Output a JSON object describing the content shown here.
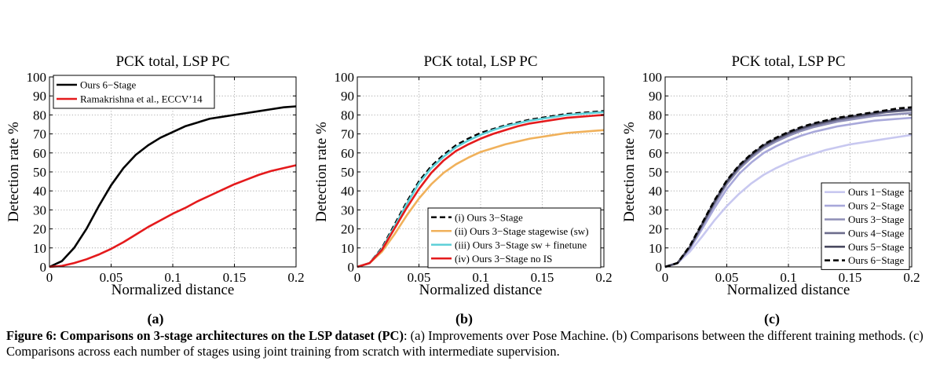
{
  "chart_data": [
    {
      "type": "line",
      "title": "PCK total, LSP PC",
      "xlabel": "Normalized distance",
      "ylabel": "Detection rate %",
      "xlim": [
        0,
        0.2
      ],
      "ylim": [
        0,
        100
      ],
      "xticks": [
        "0",
        "0.05",
        "0.1",
        "0.15",
        "0.2"
      ],
      "yticks": [
        "0",
        "10",
        "20",
        "30",
        "40",
        "50",
        "60",
        "70",
        "80",
        "90",
        "100"
      ],
      "grid": true,
      "legend_position": "top-left",
      "x": [
        0,
        0.01,
        0.02,
        0.03,
        0.04,
        0.05,
        0.06,
        0.07,
        0.08,
        0.09,
        0.1,
        0.11,
        0.12,
        0.13,
        0.14,
        0.15,
        0.16,
        0.17,
        0.18,
        0.19,
        0.2
      ],
      "series": [
        {
          "name": "Ours 6−Stage",
          "color": "#000000",
          "dash": "solid",
          "values": [
            0,
            3,
            10,
            20,
            32,
            43,
            52,
            59,
            64,
            68,
            71,
            74,
            76,
            78,
            79,
            80,
            81,
            82,
            83,
            84,
            84.5
          ]
        },
        {
          "name": "Ramakrishna et al., ECCV’14",
          "color": "#e41a1c",
          "dash": "solid",
          "values": [
            0,
            0.5,
            2,
            4,
            6.5,
            9.5,
            13,
            17,
            21,
            24.5,
            28,
            31,
            34.5,
            37.5,
            40.5,
            43.5,
            46,
            48.5,
            50.5,
            52,
            53.5
          ]
        }
      ]
    },
    {
      "type": "line",
      "title": "PCK total, LSP PC",
      "xlabel": "Normalized distance",
      "ylabel": "Detection rate %",
      "xlim": [
        0,
        0.2
      ],
      "ylim": [
        0,
        100
      ],
      "xticks": [
        "0",
        "0.05",
        "0.1",
        "0.15",
        "0.2"
      ],
      "yticks": [
        "0",
        "10",
        "20",
        "30",
        "40",
        "50",
        "60",
        "70",
        "80",
        "90",
        "100"
      ],
      "grid": true,
      "legend_position": "bottom-right",
      "x": [
        0,
        0.01,
        0.02,
        0.03,
        0.04,
        0.05,
        0.06,
        0.07,
        0.08,
        0.09,
        0.1,
        0.11,
        0.12,
        0.13,
        0.14,
        0.15,
        0.16,
        0.17,
        0.18,
        0.19,
        0.2
      ],
      "series": [
        {
          "name": "(i) Ours 3−Stage",
          "color": "#000000",
          "dash": "dashed",
          "values": [
            0,
            2,
            10,
            22,
            34,
            45,
            53,
            59,
            64,
            67.5,
            70.5,
            72.5,
            74.5,
            76,
            77.5,
            78.5,
            79.5,
            80.5,
            81,
            81.5,
            82
          ]
        },
        {
          "name": "(ii) Ours 3−Stage stagewise (sw)",
          "color": "#f0b15b",
          "dash": "solid",
          "values": [
            0,
            2,
            8,
            17,
            27,
            36,
            43.5,
            49.5,
            54,
            57.5,
            60.5,
            62.5,
            64.5,
            66,
            67.5,
            68.5,
            69.5,
            70.5,
            71,
            71.5,
            72
          ]
        },
        {
          "name": "(iii) Ours 3−Stage sw + finetune",
          "color": "#5fd0d8",
          "dash": "solid",
          "values": [
            0,
            2,
            9.5,
            21,
            33,
            44,
            52,
            58,
            63,
            66.5,
            69.5,
            72,
            74,
            75.5,
            77,
            78,
            79,
            80,
            80.5,
            81,
            81.5
          ]
        },
        {
          "name": "(iv) Ours 3−Stage no IS",
          "color": "#e41a1c",
          "dash": "solid",
          "values": [
            0,
            2,
            9,
            20,
            31,
            41,
            49.5,
            56,
            61,
            64.5,
            67.5,
            70,
            72,
            74,
            75.5,
            76.5,
            77.5,
            78.5,
            79,
            79.5,
            80
          ]
        }
      ]
    },
    {
      "type": "line",
      "title": "PCK total, LSP PC",
      "xlabel": "Normalized distance",
      "ylabel": "Detection rate %",
      "xlim": [
        0,
        0.2
      ],
      "ylim": [
        0,
        100
      ],
      "xticks": [
        "0",
        "0.05",
        "0.1",
        "0.15",
        "0.2"
      ],
      "yticks": [
        "0",
        "10",
        "20",
        "30",
        "40",
        "50",
        "60",
        "70",
        "80",
        "90",
        "100"
      ],
      "grid": true,
      "legend_position": "bottom-right",
      "x": [
        0,
        0.01,
        0.02,
        0.03,
        0.04,
        0.05,
        0.06,
        0.07,
        0.08,
        0.09,
        0.1,
        0.11,
        0.12,
        0.13,
        0.14,
        0.15,
        0.16,
        0.17,
        0.18,
        0.19,
        0.2
      ],
      "series": [
        {
          "name": "Ours 1−Stage",
          "color": "#c8c8f0",
          "dash": "solid",
          "values": [
            0,
            2,
            8,
            16,
            24.5,
            32,
            38.5,
            44,
            48.5,
            52,
            55,
            57.5,
            59.5,
            61.5,
            63,
            64.5,
            65.5,
            66.5,
            67.5,
            68.5,
            69.5
          ]
        },
        {
          "name": "Ours 2−Stage",
          "color": "#a8a8da",
          "dash": "solid",
          "values": [
            0,
            2,
            9.5,
            20,
            31,
            41,
            49,
            55,
            60,
            63.5,
            66.5,
            69,
            71,
            72.5,
            74,
            75,
            76,
            77,
            77.5,
            78,
            78.5
          ]
        },
        {
          "name": "Ours 3−Stage",
          "color": "#8e8eb6",
          "dash": "solid",
          "values": [
            0,
            2,
            10,
            21.5,
            33,
            43.5,
            51.5,
            57.5,
            62.5,
            66,
            69,
            71.5,
            73.5,
            75,
            76.5,
            77.5,
            78.5,
            79.5,
            80,
            80.5,
            81
          ]
        },
        {
          "name": "Ours 4−Stage",
          "color": "#6c6c8c",
          "dash": "solid",
          "values": [
            0,
            2,
            10.5,
            22,
            34,
            44.5,
            52.5,
            58.5,
            63.5,
            67,
            70,
            72.5,
            74.5,
            76,
            77.5,
            78.5,
            79.5,
            80.5,
            81.5,
            82,
            82.5
          ]
        },
        {
          "name": "Ours 5−Stage",
          "color": "#4a4a60",
          "dash": "solid",
          "values": [
            0,
            2,
            10.5,
            22.5,
            34.5,
            45,
            53,
            59,
            64,
            67.5,
            70.5,
            73,
            75,
            76.5,
            78,
            79,
            80,
            81,
            82,
            82.5,
            83
          ]
        },
        {
          "name": "Ours 6−Stage",
          "color": "#000000",
          "dash": "dashed",
          "values": [
            0,
            2,
            11,
            23,
            35,
            45.5,
            53.5,
            59.5,
            64.5,
            68,
            71,
            73.5,
            75.5,
            77,
            78.5,
            79.5,
            80.5,
            81.5,
            82.5,
            83.5,
            84
          ]
        }
      ]
    }
  ],
  "panel_labels": [
    "(a)",
    "(b)",
    "(c)"
  ],
  "caption": {
    "bold": "Figure 6: Comparisons on 3-stage architectures on the LSP dataset (PC)",
    "rest": ": (a) Improvements over Pose Machine. (b) Comparisons between the different training methods. (c) Comparisons across each number of stages using joint training from scratch with intermediate supervision."
  }
}
